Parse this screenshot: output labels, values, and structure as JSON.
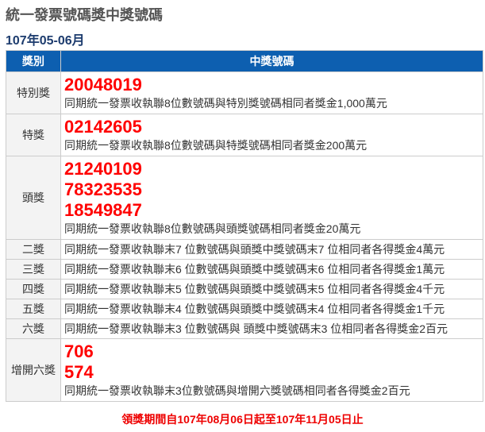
{
  "title": "統一發票號碼獎中獎號碼",
  "period": "107年05-06月",
  "header": {
    "col1": "獎別",
    "col2": "中獎號碼"
  },
  "prizes": [
    {
      "label": "特別獎",
      "numbers": [
        "20048019"
      ],
      "desc": "同期統一發票收執聯8位數號碼與特別獎號碼相同者獎金1,000萬元"
    },
    {
      "label": "特獎",
      "numbers": [
        "02142605"
      ],
      "desc": "同期統一發票收執聯8位數號碼與特獎號碼相同者獎金200萬元"
    },
    {
      "label": "頭獎",
      "numbers": [
        "21240109",
        "78323535",
        "18549847"
      ],
      "desc": "同期統一發票收執聯8位數號碼與頭獎號碼相同者獎金20萬元"
    },
    {
      "label": "二獎",
      "desc": "同期統一發票收執聯末7 位數號碼與頭獎中獎號碼末7 位相同者各得獎金4萬元"
    },
    {
      "label": "三獎",
      "desc": "同期統一發票收執聯末6 位數號碼與頭獎中獎號碼末6 位相同者各得獎金1萬元"
    },
    {
      "label": "四獎",
      "desc": "同期統一發票收執聯末5 位數號碼與頭獎中獎號碼末5 位相同者各得獎金4千元"
    },
    {
      "label": "五獎",
      "desc": "同期統一發票收執聯末4 位數號碼與頭獎中獎號碼末4 位相同者各得獎金1千元"
    },
    {
      "label": "六獎",
      "desc": "同期統一發票收執聯末3 位數號碼與 頭獎中獎號碼末3 位相同者各得獎金2百元"
    },
    {
      "label": "增開六獎",
      "numbers": [
        "706",
        "574"
      ],
      "desc": "同期統一發票收執聯末3位數號碼與增開六獎號碼相同者各得獎金2百元"
    }
  ],
  "footer": "領獎期間自107年08月06日起至107年11月05日止",
  "colors": {
    "header_bg": "#0d5fb0",
    "number": "#ff0000",
    "footer": "#ee0000"
  }
}
